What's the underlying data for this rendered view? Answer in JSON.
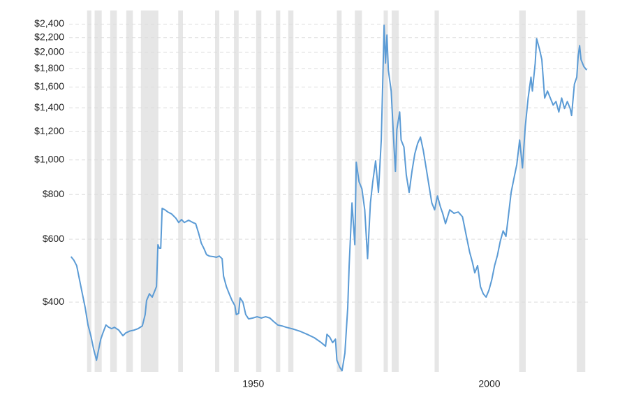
{
  "chart_data": {
    "type": "line",
    "log_scale": true,
    "grid": true,
    "xlim": [
      1911,
      2021
    ],
    "ylim": [
      255,
      2620
    ],
    "xticks": [
      1950,
      2000
    ],
    "yticks": [
      {
        "value": 400,
        "label": "$400"
      },
      {
        "value": 600,
        "label": "$600"
      },
      {
        "value": 800,
        "label": "$800"
      },
      {
        "value": 1000,
        "label": "$1,000"
      },
      {
        "value": 1200,
        "label": "$1,200"
      },
      {
        "value": 1400,
        "label": "$1,400"
      },
      {
        "value": 1600,
        "label": "$1,600"
      },
      {
        "value": 1800,
        "label": "$1,800"
      },
      {
        "value": 2000,
        "label": "$2,000"
      },
      {
        "value": 2200,
        "label": "$2,200"
      },
      {
        "value": 2400,
        "label": "$2,400"
      }
    ],
    "recession_color": "#e6e6e6",
    "recessions": [
      [
        1914.8,
        1915.7
      ],
      [
        1916.4,
        1917.9
      ],
      [
        1919.7,
        1921.1
      ],
      [
        1923.1,
        1924.5
      ],
      [
        1926.2,
        1929.9
      ],
      [
        1934.1,
        1935.1
      ],
      [
        1941.9,
        1942.8
      ],
      [
        1945.9,
        1946.9
      ],
      [
        1950.6,
        1951.7
      ],
      [
        1954.8,
        1955.7
      ],
      [
        1957.4,
        1958.5
      ],
      [
        1967.7,
        1968.7
      ],
      [
        1971.5,
        1973.0
      ],
      [
        1977.6,
        1978.5
      ],
      [
        1979.3,
        1980.8
      ],
      [
        1988.4,
        1989.3
      ],
      [
        2006.3,
        2007.7
      ],
      [
        2018.5,
        2020.3
      ]
    ],
    "series": [
      {
        "color": "#5b9bd5",
        "x": [
          1911.4,
          1912.0,
          1912.6,
          1913.2,
          1913.8,
          1914.4,
          1915.0,
          1915.6,
          1916.2,
          1916.8,
          1917.1,
          1917.7,
          1918.2,
          1918.8,
          1919.4,
          1920.0,
          1920.6,
          1921.5,
          1922.4,
          1923.0,
          1923.9,
          1924.8,
          1925.6,
          1926.5,
          1927.1,
          1927.4,
          1928.0,
          1928.6,
          1929.2,
          1929.5,
          1929.8,
          1930.1,
          1930.4,
          1930.7,
          1931.3,
          1931.9,
          1932.7,
          1933.6,
          1934.2,
          1934.8,
          1935.4,
          1936.3,
          1937.2,
          1937.8,
          1938.4,
          1939.0,
          1939.6,
          1940.1,
          1940.7,
          1941.6,
          1942.2,
          1942.8,
          1943.4,
          1943.7,
          1944.3,
          1944.9,
          1945.5,
          1946.1,
          1946.4,
          1946.9,
          1947.2,
          1947.8,
          1948.4,
          1949.0,
          1949.9,
          1950.8,
          1951.7,
          1952.6,
          1953.5,
          1954.3,
          1955.2,
          1956.1,
          1957.0,
          1958.5,
          1960.0,
          1961.4,
          1962.9,
          1964.4,
          1965.3,
          1965.6,
          1966.2,
          1966.8,
          1967.4,
          1967.7,
          1968.3,
          1968.8,
          1969.4,
          1970.0,
          1970.3,
          1970.9,
          1971.5,
          1971.8,
          1972.4,
          1973.0,
          1973.6,
          1974.2,
          1974.8,
          1975.3,
          1975.9,
          1976.5,
          1977.1,
          1977.4,
          1977.7,
          1978.0,
          1978.3,
          1978.6,
          1979.2,
          1979.8,
          1980.1,
          1980.4,
          1981.0,
          1981.3,
          1981.9,
          1982.4,
          1983.0,
          1983.6,
          1984.2,
          1984.8,
          1985.4,
          1986.0,
          1986.6,
          1987.2,
          1987.8,
          1988.4,
          1989.0,
          1989.6,
          1990.1,
          1990.7,
          1991.6,
          1992.5,
          1993.4,
          1994.3,
          1995.2,
          1995.8,
          1996.4,
          1996.9,
          1997.5,
          1998.1,
          1998.7,
          1999.3,
          1999.9,
          2000.5,
          2001.1,
          2001.7,
          2002.3,
          2002.9,
          2003.5,
          2004.0,
          2004.6,
          2005.2,
          2005.8,
          2006.4,
          2006.7,
          2007.0,
          2007.6,
          2008.2,
          2008.8,
          2009.1,
          2009.7,
          2010.0,
          2010.6,
          2011.1,
          2011.7,
          2012.3,
          2012.9,
          2013.5,
          2014.1,
          2014.7,
          2015.3,
          2015.9,
          2016.5,
          2017.1,
          2017.4,
          2018.0,
          2018.5,
          2018.8,
          2019.1,
          2019.4,
          2020.0,
          2020.6
        ],
        "values": [
          536,
          524,
          506,
          462,
          422,
          386,
          345,
          322,
          295,
          275,
          288,
          315,
          329,
          345,
          340,
          337,
          340,
          334,
          322,
          328,
          332,
          334,
          337,
          343,
          369,
          404,
          422,
          413,
          432,
          442,
          579,
          566,
          566,
          732,
          725,
          715,
          706,
          687,
          668,
          681,
          668,
          678,
          668,
          663,
          625,
          584,
          563,
          543,
          538,
          536,
          534,
          538,
          529,
          473,
          442,
          422,
          404,
          391,
          369,
          372,
          411,
          400,
          369,
          359,
          361,
          364,
          361,
          364,
          361,
          353,
          345,
          343,
          340,
          336,
          331,
          325,
          318,
          308,
          301,
          325,
          319,
          308,
          315,
          275,
          263,
          257,
          288,
          386,
          506,
          758,
          579,
          985,
          868,
          830,
          725,
          529,
          758,
          868,
          994,
          811,
          1137,
          1630,
          2381,
          1867,
          2236,
          1784,
          1559,
          1087,
          929,
          1217,
          1362,
          1137,
          1087,
          908,
          811,
          929,
          1040,
          1112,
          1158,
          1063,
          950,
          848,
          758,
          725,
          793,
          741,
          709,
          663,
          725,
          709,
          715,
          693,
          605,
          553,
          517,
          483,
          506,
          442,
          422,
          413,
          432,
          462,
          506,
          541,
          592,
          633,
          611,
          693,
          811,
          888,
          971,
          1137,
          1040,
          950,
          1244,
          1490,
          1705,
          1559,
          1867,
          2185,
          2044,
          1909,
          1490,
          1559,
          1490,
          1424,
          1457,
          1362,
          1490,
          1393,
          1457,
          1393,
          1332,
          1630,
          1705,
          1954,
          2089,
          1909,
          1825,
          1784
        ]
      }
    ]
  }
}
